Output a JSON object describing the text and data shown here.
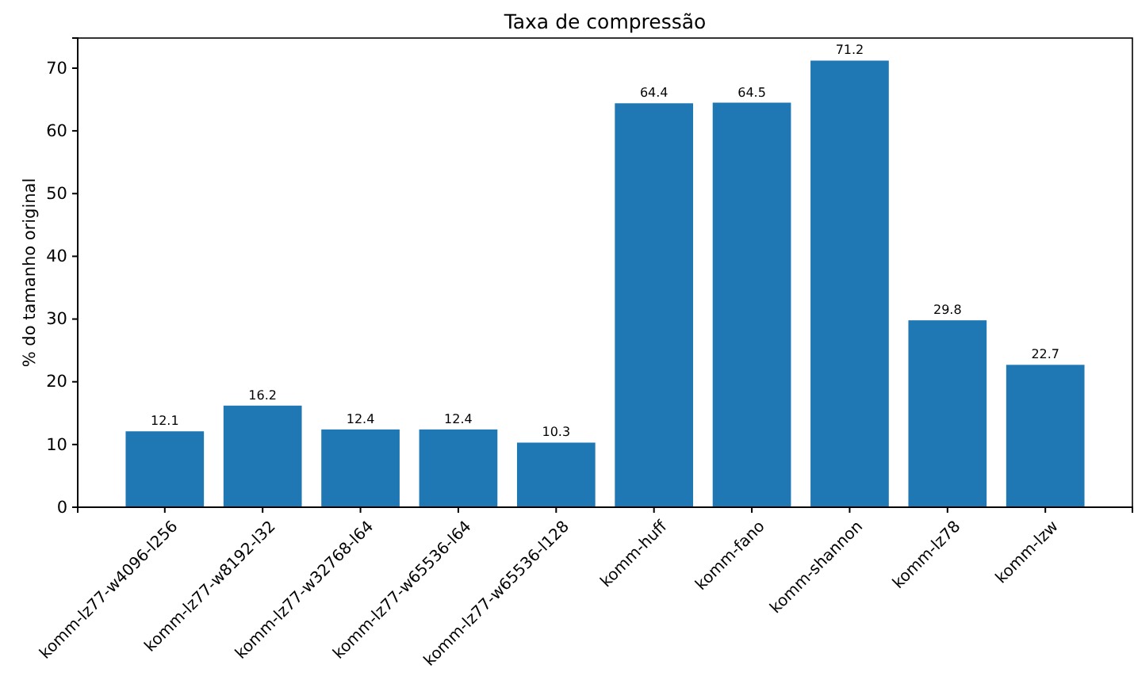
{
  "chart_data": {
    "type": "bar",
    "title": "Taxa de compressão",
    "ylabel": "% do tamanho original",
    "categories": [
      "komm-lz77-w4096-l256",
      "komm-lz77-w8192-l32",
      "komm-lz77-w32768-l64",
      "komm-lz77-w65536-l64",
      "komm-lz77-w65536-l128",
      "komm-huff",
      "komm-fano",
      "komm-shannon",
      "komm-lz78",
      "komm-lzw"
    ],
    "values": [
      12.1,
      16.2,
      12.4,
      12.4,
      10.3,
      64.4,
      64.5,
      71.2,
      29.8,
      22.7
    ],
    "color": "#1f77b4",
    "ylim": [
      0,
      74.8
    ],
    "yticks": [
      0,
      10,
      20,
      30,
      40,
      50,
      60,
      70
    ],
    "data_labels": true
  }
}
